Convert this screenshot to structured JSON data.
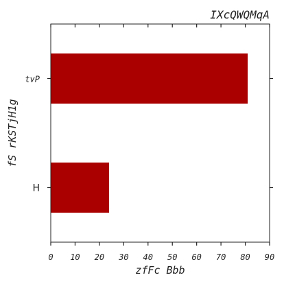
{
  "chart_data": {
    "type": "bar",
    "orientation": "horizontal",
    "title": "IXcQWQMqA",
    "xlabel": "zfFc Bbb",
    "ylabel": "fS rKSTjH1g",
    "categories": [
      "H",
      "tvP"
    ],
    "values": [
      24,
      81
    ],
    "xlim": [
      0,
      90
    ],
    "xticks": [
      0,
      10,
      20,
      30,
      40,
      50,
      60,
      70,
      80,
      90
    ],
    "grid": false,
    "bar_color": "#aa0000"
  }
}
